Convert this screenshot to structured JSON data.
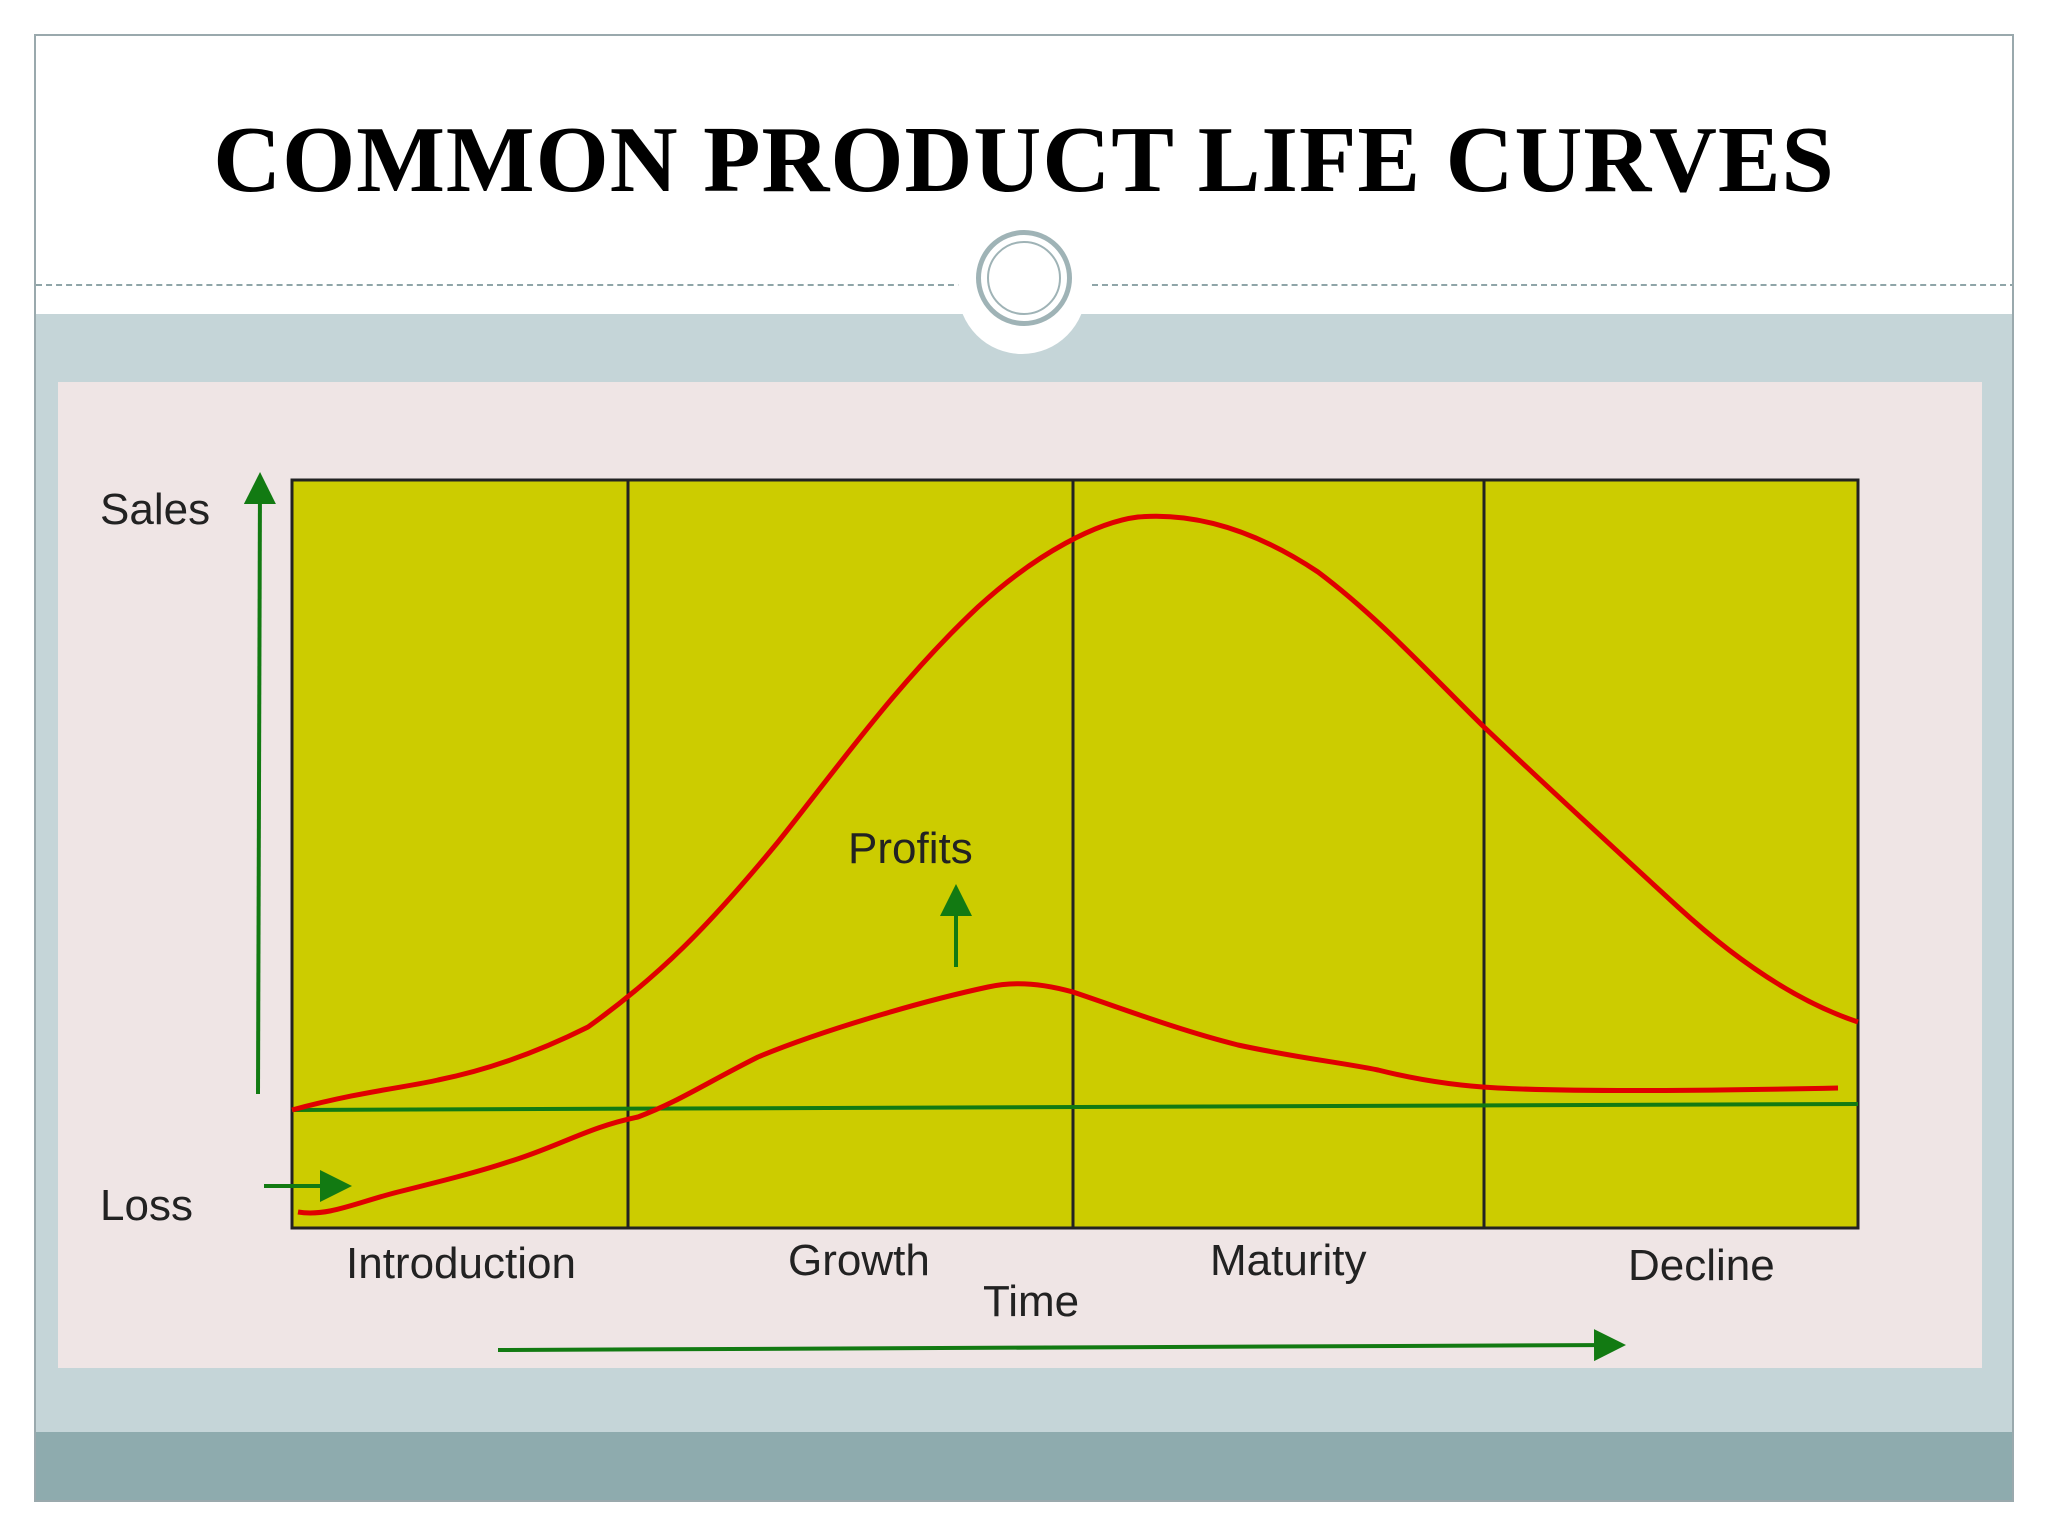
{
  "slide": {
    "title": "COMMON PRODUCT LIFE CURVES"
  },
  "diagram": {
    "y_axis_label": "Sales",
    "loss_label": "Loss",
    "profits_label": "Profits",
    "x_axis_label": "Time",
    "stages": [
      "Introduction",
      "Growth",
      "Maturity",
      "Decline"
    ],
    "colors": {
      "plot_fill": "#cccc00",
      "curve": "#e00000",
      "arrow": "#127a12",
      "breakeven_line": "#127a12",
      "divider": "#222222"
    }
  }
}
